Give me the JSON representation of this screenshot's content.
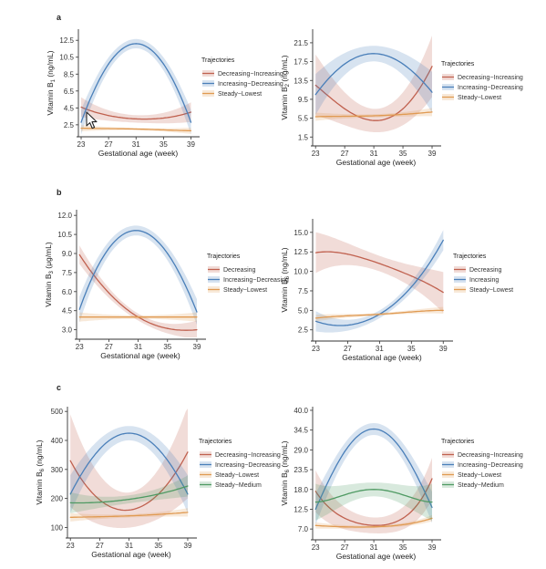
{
  "panel_letters": [
    "a",
    "b",
    "c"
  ],
  "colors": {
    "Decreasing-Increasing": "#c0614f",
    "Decreasing": "#c0614f",
    "Increasing-Decreasing": "#4a7fb9",
    "Increasing": "#4a7fb9",
    "Steady-Lowest": "#e09a52",
    "Steady-Medium": "#4f9a63"
  },
  "chart_data": [
    {
      "type": "line",
      "panel": "a",
      "ylabel_main": "Vitamin B",
      "ylabel_sub": "1",
      "ylabel_unit": " (ng/mL)",
      "xlabel": "Gestational age (week)",
      "xticks": [
        23,
        27,
        31,
        35,
        39
      ],
      "xlim": [
        22.6,
        40
      ],
      "yticks": [
        "2.5",
        "4.5",
        "6.5",
        "8.5",
        "10.5",
        "12.5"
      ],
      "ylim": [
        1.3,
        13.6
      ],
      "legend_title": "Trajectories",
      "series": [
        {
          "name": "Decreasing−Increasing",
          "key": "Decreasing-Increasing",
          "x": [
            23,
            27,
            31,
            35,
            39
          ],
          "y": [
            4.6,
            3.6,
            3.2,
            3.3,
            4.0
          ],
          "band": 0.8
        },
        {
          "name": "Increasing−Decreasing",
          "key": "Increasing-Decreasing",
          "x": [
            23,
            27,
            31,
            35,
            39
          ],
          "y": [
            2.8,
            9.7,
            12.1,
            9.7,
            2.8
          ],
          "band": 1.0
        },
        {
          "name": "Steady−Lowest",
          "key": "Steady-Lowest",
          "x": [
            23,
            27,
            31,
            35,
            39
          ],
          "y": [
            2.1,
            2.05,
            2.0,
            1.9,
            1.8
          ],
          "band": 0.25
        }
      ]
    },
    {
      "type": "line",
      "panel": "a2",
      "ylabel_main": "Vitamin B",
      "ylabel_sub": "2",
      "ylabel_unit": " (ng/mL)",
      "xlabel": "Gestational age (week)",
      "xticks": [
        23,
        27,
        31,
        35,
        39
      ],
      "xlim": [
        22.6,
        40
      ],
      "yticks": [
        "1.5",
        "5.5",
        "9.5",
        "13.5",
        "17.5",
        "21.5"
      ],
      "ylim": [
        0,
        24
      ],
      "legend_title": "Trajectories",
      "series": [
        {
          "name": "Decreasing−Increasing",
          "key": "Decreasing-Increasing",
          "x": [
            23,
            27,
            31,
            35,
            39
          ],
          "y": [
            12.5,
            7.5,
            5.0,
            7.5,
            16.5
          ],
          "band": 4.5
        },
        {
          "name": "Increasing−Decreasing",
          "key": "Increasing-Decreasing",
          "x": [
            23,
            27,
            31,
            35,
            39
          ],
          "y": [
            10.5,
            17.0,
            19.2,
            17.0,
            11.0
          ],
          "band": 3.0
        },
        {
          "name": "Steady−Lowest",
          "key": "Steady-Lowest",
          "x": [
            23,
            27,
            31,
            35,
            39
          ],
          "y": [
            5.8,
            5.9,
            6.0,
            6.3,
            6.8
          ],
          "band": 0.6
        }
      ]
    },
    {
      "type": "line",
      "panel": "b",
      "ylabel_main": "Vitamin B",
      "ylabel_sub": "3",
      "ylabel_unit": " (μg/mL)",
      "xlabel": "Gestational age (week)",
      "xticks": [
        23,
        27,
        31,
        35,
        39
      ],
      "xlim": [
        22.6,
        40
      ],
      "yticks": [
        "3.0",
        "4.5",
        "6.0",
        "7.5",
        "9.0",
        "10.5",
        "12.0"
      ],
      "ylim": [
        2.4,
        12.3
      ],
      "legend_title": "Trajectories",
      "series": [
        {
          "name": "Decreasing",
          "key": "Decreasing",
          "x": [
            23,
            27,
            31,
            35,
            39
          ],
          "y": [
            8.9,
            5.9,
            4.0,
            3.1,
            3.0
          ],
          "band": 0.5
        },
        {
          "name": "Increasing−Decreasing",
          "key": "Increasing-Decreasing",
          "x": [
            23,
            27,
            31,
            35,
            39
          ],
          "y": [
            4.6,
            9.4,
            10.8,
            9.0,
            4.4
          ],
          "band": 0.7
        },
        {
          "name": "Steady−Lowest",
          "key": "Steady-Lowest",
          "x": [
            23,
            27,
            31,
            35,
            39
          ],
          "y": [
            4.0,
            4.0,
            4.0,
            4.0,
            4.0
          ],
          "band": 0.25
        }
      ]
    },
    {
      "type": "line",
      "panel": "b2",
      "ylabel_main": "Vitamin B",
      "ylabel_sub": "6",
      "ylabel_unit": " (ng/mL)",
      "xlabel": "Gestational age (week)",
      "xticks": [
        23,
        27,
        31,
        35,
        39
      ],
      "xlim": [
        22.6,
        40
      ],
      "yticks": [
        "2.5",
        "5.0",
        "7.5",
        "10.0",
        "12.5",
        "15.0"
      ],
      "ylim": [
        1.3,
        16.5
      ],
      "legend_title": "Trajectories",
      "series": [
        {
          "name": "Decreasing",
          "key": "Decreasing",
          "x": [
            23,
            27,
            31,
            35,
            39
          ],
          "y": [
            12.4,
            12.2,
            11.0,
            9.4,
            7.3
          ],
          "band": 1.8
        },
        {
          "name": "Increasing",
          "key": "Increasing",
          "x": [
            23,
            27,
            31,
            35,
            39
          ],
          "y": [
            3.6,
            3.1,
            4.5,
            8.0,
            14.0
          ],
          "band": 0.9
        },
        {
          "name": "Steady−Lowest",
          "key": "Steady-Lowest",
          "x": [
            23,
            27,
            31,
            35,
            39
          ],
          "y": [
            4.0,
            4.3,
            4.5,
            4.8,
            5.0
          ],
          "band": 0.3
        }
      ]
    },
    {
      "type": "line",
      "panel": "c",
      "ylabel_main": "Vitamin B",
      "ylabel_sub": "6",
      "ylabel_unit": " (ng/mL)",
      "xlabel": "Gestational age (week)",
      "xticks": [
        23,
        27,
        31,
        35,
        39
      ],
      "xlim": [
        22.6,
        40
      ],
      "yticks": [
        "100",
        "200",
        "300",
        "400",
        "500"
      ],
      "ylim": [
        70,
        510
      ],
      "legend_title": "Trajectories",
      "series": [
        {
          "name": "Decreasing−Increasing",
          "key": "Decreasing-Increasing",
          "x": [
            23,
            27,
            31,
            35,
            39
          ],
          "y": [
            330,
            195,
            160,
            215,
            360
          ],
          "band": 110
        },
        {
          "name": "Increasing−Decreasing",
          "key": "Increasing-Decreasing",
          "x": [
            23,
            27,
            31,
            35,
            39
          ],
          "y": [
            215,
            370,
            425,
            370,
            215
          ],
          "band": 45
        },
        {
          "name": "Steady−Lowest",
          "key": "Steady-Lowest",
          "x": [
            23,
            27,
            31,
            35,
            39
          ],
          "y": [
            135,
            137,
            140,
            145,
            152
          ],
          "band": 10
        },
        {
          "name": "Steady−Medium",
          "key": "Steady-Medium",
          "x": [
            23,
            27,
            31,
            35,
            39
          ],
          "y": [
            185,
            187,
            197,
            215,
            243
          ],
          "band": 25
        }
      ]
    },
    {
      "type": "line",
      "panel": "c2",
      "ylabel_main": "Vitamin B",
      "ylabel_sub": "6",
      "ylabel_unit": " (ng/mL)",
      "xlabel": "Gestational age (week)",
      "xticks": [
        23,
        27,
        31,
        35,
        39
      ],
      "xlim": [
        22.6,
        40
      ],
      "yticks": [
        "7.0",
        "12.5",
        "18.0",
        "23.5",
        "29.0",
        "34.5",
        "40.0"
      ],
      "ylim": [
        4.5,
        40.5
      ],
      "legend_title": "Trajectories",
      "series": [
        {
          "name": "Decreasing−Increasing",
          "key": "Decreasing-Increasing",
          "x": [
            23,
            27,
            31,
            35,
            39
          ],
          "y": [
            17.5,
            10.0,
            8.0,
            10.0,
            21.0
          ],
          "band": 4.0
        },
        {
          "name": "Increasing−Decreasing",
          "key": "Increasing-Decreasing",
          "x": [
            23,
            27,
            31,
            35,
            39
          ],
          "y": [
            12.5,
            28.5,
            34.8,
            28.5,
            13.0
          ],
          "band": 3.0
        },
        {
          "name": "Steady−Lowest",
          "key": "Steady-Lowest",
          "x": [
            23,
            27,
            31,
            35,
            39
          ],
          "y": [
            8.0,
            7.6,
            7.6,
            8.2,
            10.0
          ],
          "band": 0.6
        },
        {
          "name": "Steady−Medium",
          "key": "Steady-Medium",
          "x": [
            23,
            27,
            31,
            35,
            39
          ],
          "y": [
            14.5,
            16.5,
            18.0,
            16.5,
            14.5
          ],
          "band": 3.5
        }
      ]
    }
  ]
}
